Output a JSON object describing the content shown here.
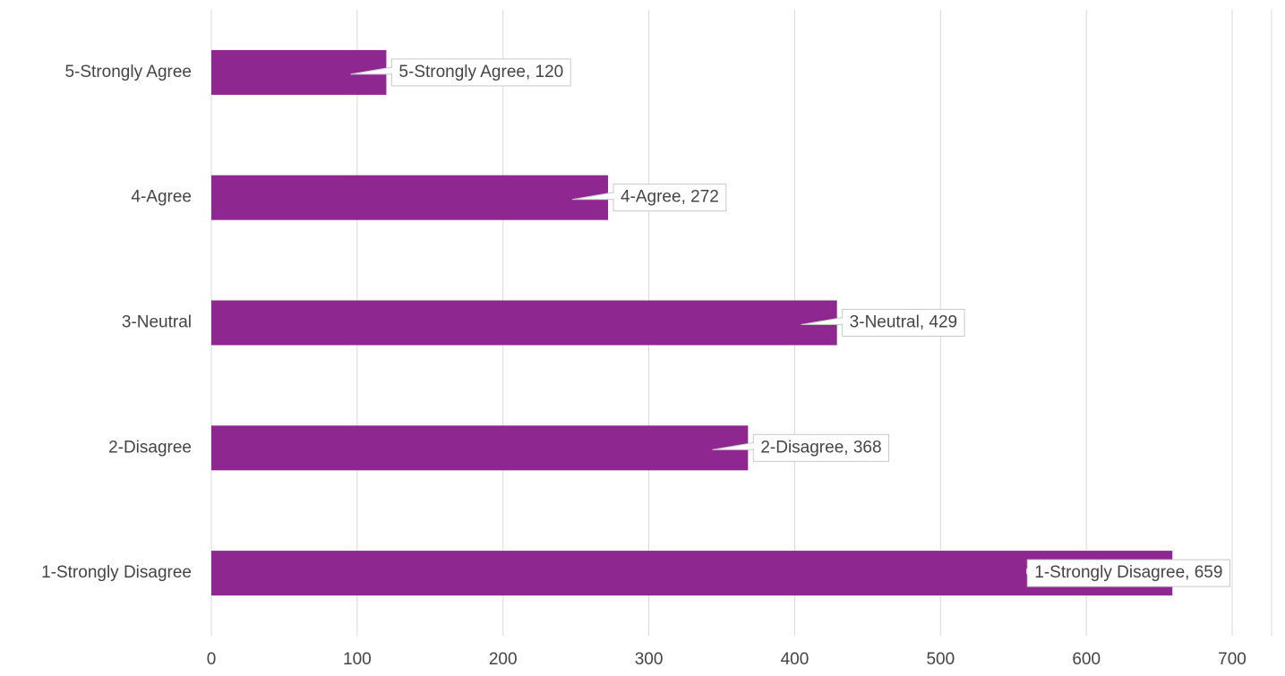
{
  "chart_data": {
    "type": "hbar",
    "categories": [
      "5-Strongly Agree",
      "4-Agree",
      "3-Neutral",
      "2-Disagree",
      "1-Strongly Disagree"
    ],
    "values": [
      120,
      272,
      429,
      368,
      659
    ],
    "value_labels": [
      "5-Strongly Agree, 120",
      "4-Agree, 272",
      "3-Neutral, 429",
      "2-Disagree, 368",
      "1-Strongly Disagree, 659"
    ],
    "color": "#8e278f",
    "xlim": [
      0,
      727
    ],
    "xticks": [
      0,
      100,
      200,
      300,
      400,
      500,
      600,
      700
    ],
    "grid": true
  }
}
